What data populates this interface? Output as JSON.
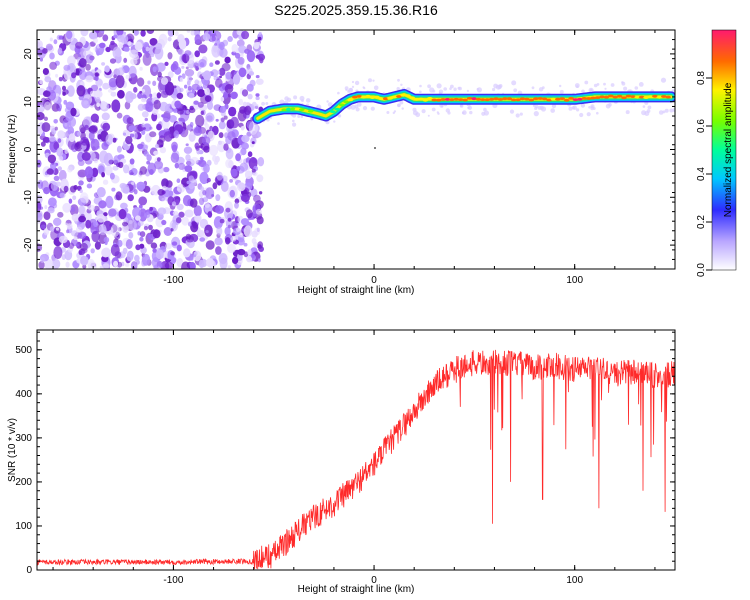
{
  "title": "S225.2025.359.15.36.R16",
  "colors": {
    "noise": "#7a30d8",
    "ridge_low": "#2a8cff",
    "ridge_mid": "#22e06a",
    "ridge_high": "#ff3a1a",
    "snr_line": "#ff2a2a",
    "frame": "#000000"
  },
  "chart_data": [
    {
      "type": "heatmap",
      "title": "S225.2025.359.15.36.R16",
      "xlabel": "Height of straight line (km)",
      "ylabel": "Frequency (Hz)",
      "xlim": [
        -168,
        150
      ],
      "ylim": [
        -25,
        25
      ],
      "xticks": [
        -100,
        0,
        100
      ],
      "yticks": [
        -20,
        -10,
        0,
        10,
        20
      ],
      "colorbar": {
        "label": "Normalized spectral amplitude",
        "range": [
          0,
          1
        ],
        "ticks": [
          0.0,
          0.2,
          0.4,
          0.6,
          0.8
        ]
      },
      "ridge": {
        "x": [
          -58,
          -52,
          -45,
          -38,
          -33,
          -28,
          -24,
          -20,
          -16,
          -12,
          -8,
          -4,
          0,
          5,
          10,
          15,
          20,
          25,
          40,
          60,
          80,
          100,
          110,
          120,
          130,
          140,
          148
        ],
        "frequency": [
          6.5,
          8,
          8.5,
          8.5,
          8,
          7.5,
          7,
          8,
          9.5,
          10.5,
          11,
          11,
          11,
          10.5,
          11,
          11.5,
          10.5,
          10.5,
          10.5,
          10.5,
          10.5,
          10.5,
          11,
          11,
          11,
          11,
          11
        ],
        "amplitude": [
          0.3,
          0.45,
          0.6,
          0.7,
          0.6,
          0.55,
          0.5,
          0.6,
          0.7,
          0.8,
          0.85,
          0.9,
          0.85,
          0.85,
          0.9,
          0.85,
          0.8,
          0.9,
          0.95,
          0.95,
          0.9,
          0.95,
          0.9,
          0.95,
          0.9,
          0.9,
          0.85
        ]
      },
      "noise_region": {
        "x_start": -168,
        "x_end": -60,
        "frequency_range": [
          -25,
          25
        ],
        "amplitude_range": [
          0.1,
          0.35
        ]
      }
    },
    {
      "type": "line",
      "xlabel": "Height of straight line (km)",
      "ylabel": "SNR (10 * v/v)",
      "xlim": [
        -168,
        150
      ],
      "ylim": [
        0,
        545
      ],
      "xticks": [
        -100,
        0,
        100
      ],
      "yticks": [
        0,
        100,
        200,
        300,
        400,
        500
      ],
      "envelope": {
        "x": [
          -168,
          -100,
          -60,
          -50,
          -40,
          -30,
          -20,
          -10,
          0,
          10,
          20,
          30,
          40,
          50,
          60,
          70,
          80,
          90,
          100,
          110,
          120,
          130,
          140,
          150
        ],
        "y": [
          18,
          18,
          20,
          35,
          80,
          120,
          150,
          190,
          240,
          300,
          360,
          420,
          455,
          470,
          470,
          470,
          460,
          465,
          455,
          460,
          445,
          450,
          440,
          445
        ]
      },
      "noise_amplitude": 30,
      "dropouts": [
        {
          "x": 59,
          "y": 105
        },
        {
          "x": 68,
          "y": 200
        },
        {
          "x": 84,
          "y": 160
        },
        {
          "x": 112,
          "y": 140
        },
        {
          "x": 134,
          "y": 180
        },
        {
          "x": 145,
          "y": 132
        }
      ]
    }
  ]
}
